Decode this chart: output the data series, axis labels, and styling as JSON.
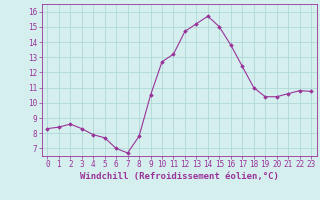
{
  "x": [
    0,
    1,
    2,
    3,
    4,
    5,
    6,
    7,
    8,
    9,
    10,
    11,
    12,
    13,
    14,
    15,
    16,
    17,
    18,
    19,
    20,
    21,
    22,
    23
  ],
  "y": [
    8.3,
    8.4,
    8.6,
    8.3,
    7.9,
    7.7,
    7.0,
    6.7,
    7.8,
    10.5,
    12.7,
    13.2,
    14.7,
    15.2,
    15.7,
    15.0,
    13.8,
    12.4,
    11.0,
    10.4,
    10.4,
    10.6,
    10.8,
    10.75
  ],
  "line_color": "#993399",
  "marker": "D",
  "markersize": 1.8,
  "linewidth": 0.8,
  "xlabel": "Windchill (Refroidissement éolien,°C)",
  "xlim": [
    -0.5,
    23.5
  ],
  "ylim": [
    6.5,
    16.5
  ],
  "yticks": [
    7,
    8,
    9,
    10,
    11,
    12,
    13,
    14,
    15,
    16
  ],
  "xticks": [
    0,
    1,
    2,
    3,
    4,
    5,
    6,
    7,
    8,
    9,
    10,
    11,
    12,
    13,
    14,
    15,
    16,
    17,
    18,
    19,
    20,
    21,
    22,
    23
  ],
  "background_color": "#d5efef",
  "grid_color": "#b0d8d8",
  "tick_color": "#993399",
  "label_color": "#993399",
  "xlabel_fontsize": 6.5,
  "tick_fontsize": 5.5
}
